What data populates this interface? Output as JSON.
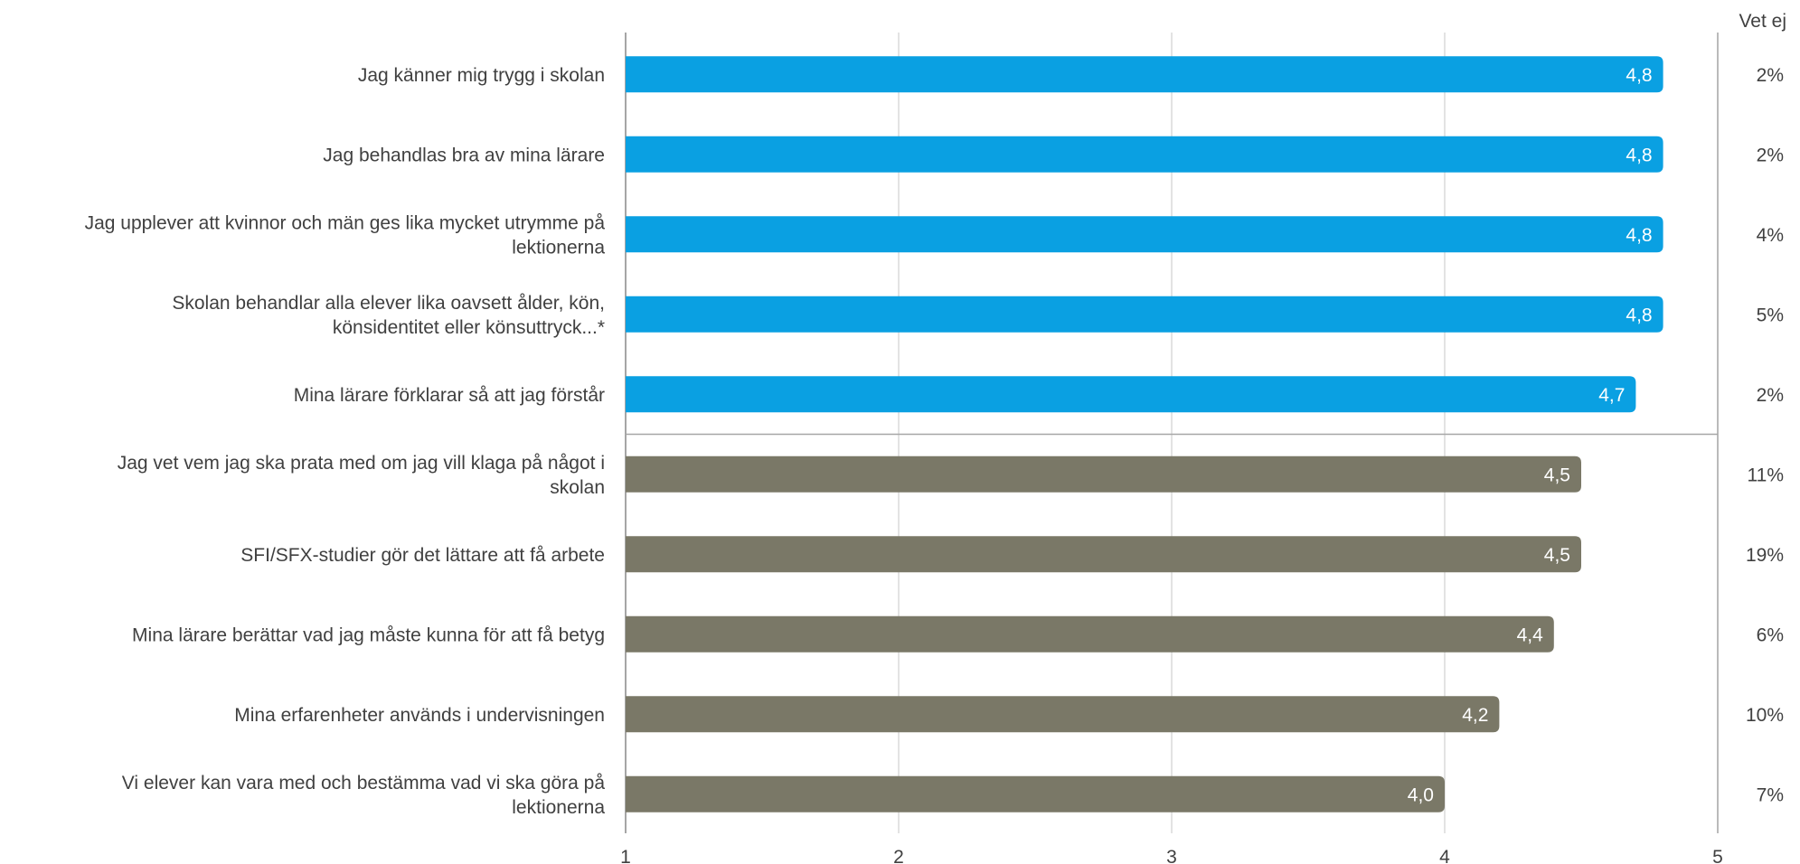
{
  "chart_data": {
    "type": "bar",
    "orientation": "horizontal",
    "categories": [
      "Jag känner mig trygg i skolan",
      "Jag behandlas bra av mina lärare",
      "Jag upplever att kvinnor och män ges lika mycket utrymme på lektionerna",
      "Skolan behandlar alla elever lika oavsett ålder, kön, könsidentitet eller könsuttryck...*",
      "Mina lärare förklarar så att jag förstår",
      "Jag vet vem jag ska prata med om jag vill klaga på något i skolan",
      "SFI/SFX-studier gör det lättare att få arbete",
      "Mina lärare berättar vad jag måste kunna för att få betyg",
      "Mina erfarenheter används i undervisningen",
      "Vi elever kan vara med och bestämma vad vi ska göra på lektionerna"
    ],
    "label_lines": [
      [
        "Jag känner mig trygg i skolan"
      ],
      [
        "Jag behandlas bra av mina lärare"
      ],
      [
        "Jag upplever att kvinnor och män ges lika mycket utrymme på",
        "lektionerna"
      ],
      [
        "Skolan behandlar alla elever lika oavsett ålder, kön,",
        "könsidentitet eller könsuttryck...*"
      ],
      [
        "Mina lärare förklarar så att jag förstår"
      ],
      [
        "Jag vet vem jag ska prata med om jag vill klaga på något i",
        "skolan"
      ],
      [
        "SFI/SFX-studier gör det lättare att få arbete"
      ],
      [
        "Mina lärare berättar vad jag måste kunna för att få betyg"
      ],
      [
        "Mina erfarenheter används i undervisningen"
      ],
      [
        "Vi elever kan vara med och bestämma vad vi ska göra på",
        "lektionerna"
      ]
    ],
    "values": [
      4.8,
      4.8,
      4.8,
      4.8,
      4.7,
      4.5,
      4.5,
      4.4,
      4.2,
      4.0
    ],
    "value_labels": [
      "4,8",
      "4,8",
      "4,8",
      "4,8",
      "4,7",
      "4,5",
      "4,5",
      "4,4",
      "4,2",
      "4,0"
    ],
    "groups": [
      0,
      0,
      0,
      0,
      0,
      1,
      1,
      1,
      1,
      1
    ],
    "group_colors": [
      "#0aa0e2",
      "#7a7867"
    ],
    "vet_ej_header": "Vet ej",
    "vet_ej": [
      "2%",
      "2%",
      "4%",
      "5%",
      "2%",
      "11%",
      "19%",
      "6%",
      "10%",
      "7%"
    ],
    "xlim": [
      1,
      5
    ],
    "xticks": [
      "1",
      "2",
      "3",
      "4",
      "5"
    ],
    "grid": true,
    "title": "",
    "xlabel": "",
    "ylabel": ""
  }
}
